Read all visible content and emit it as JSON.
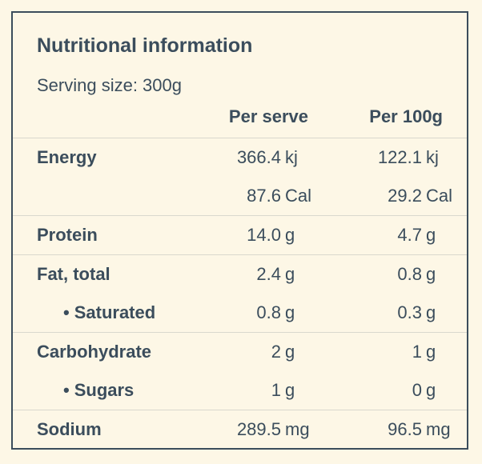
{
  "colors": {
    "background": "#fdf7e6",
    "text": "#3b4d5c",
    "border": "#3b4d5c",
    "divider": "#dad8ce"
  },
  "card": {
    "title": "Nutritional information",
    "serving_size": "Serving size: 300g",
    "bullet": "•",
    "header": {
      "per_serve": "Per serve",
      "per_100g": "Per 100g"
    },
    "sections": [
      {
        "rows": [
          {
            "label": "Energy",
            "per_serve": {
              "value": "366.4",
              "unit": "kj"
            },
            "per_100g": {
              "value": "122.1",
              "unit": "kj"
            }
          },
          {
            "label": "",
            "per_serve": {
              "value": "87.6",
              "unit": "Cal"
            },
            "per_100g": {
              "value": "29.2",
              "unit": "Cal"
            }
          }
        ]
      },
      {
        "rows": [
          {
            "label": "Protein",
            "per_serve": {
              "value": "14.0",
              "unit": "g"
            },
            "per_100g": {
              "value": "4.7",
              "unit": "g"
            }
          }
        ]
      },
      {
        "rows": [
          {
            "label": "Fat, total",
            "per_serve": {
              "value": "2.4",
              "unit": "g"
            },
            "per_100g": {
              "value": "0.8",
              "unit": "g"
            }
          },
          {
            "label": "Saturated",
            "per_serve": {
              "value": "0.8",
              "unit": "g"
            },
            "per_100g": {
              "value": "0.3",
              "unit": "g"
            }
          }
        ]
      },
      {
        "rows": [
          {
            "label": "Carbohydrate",
            "per_serve": {
              "value": "2",
              "unit": "g"
            },
            "per_100g": {
              "value": "1",
              "unit": "g"
            }
          },
          {
            "label": "Sugars",
            "per_serve": {
              "value": "1",
              "unit": "g"
            },
            "per_100g": {
              "value": "0",
              "unit": "g"
            }
          }
        ]
      },
      {
        "rows": [
          {
            "label": "Sodium",
            "per_serve": {
              "value": "289.5",
              "unit": "mg"
            },
            "per_100g": {
              "value": "96.5",
              "unit": "mg"
            }
          }
        ]
      }
    ]
  }
}
